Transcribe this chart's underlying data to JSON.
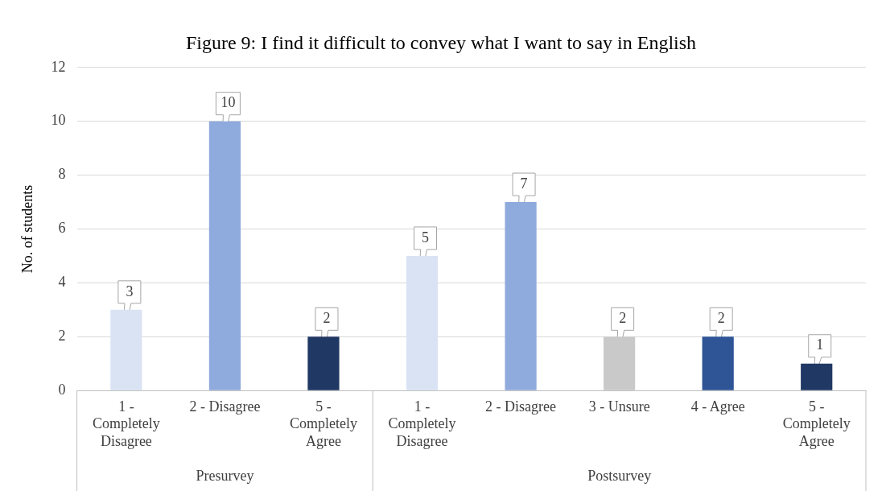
{
  "chart_data": {
    "type": "bar",
    "title": "Figure 9: I find it difficult to convey what I want to say in English",
    "ylabel": "No. of students",
    "categories": [
      "1 - Completely Disagree",
      "2 - Disagree",
      "5 - Completely Agree",
      "1 - Completely Disagree",
      "2 - Disagree",
      "3 - Unsure",
      "4 - Agree",
      "5 - Completely Agree"
    ],
    "values": [
      3,
      10,
      2,
      5,
      7,
      2,
      2,
      1
    ],
    "colors": [
      "#dae3f3",
      "#8faadc",
      "#203864",
      "#dae3f3",
      "#8faadc",
      "#c9c9c9",
      "#2f5597",
      "#203864"
    ],
    "ylim": [
      0,
      12
    ],
    "yticks": [
      0,
      2,
      4,
      6,
      8,
      10,
      12
    ],
    "grid": "y",
    "legend": false,
    "data_labels": true,
    "annotations": [
      "Presurvey",
      "Postsurvey"
    ]
  }
}
